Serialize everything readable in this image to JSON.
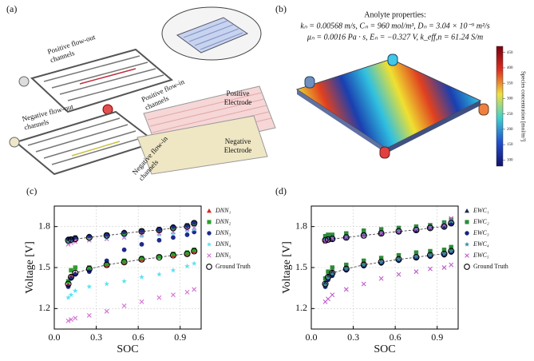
{
  "panel_a": {
    "label": "(a)",
    "texts": [
      {
        "lines": [
          "Positive flow-out",
          "channels"
        ]
      },
      {
        "lines": [
          "Negative flow-out",
          "channels"
        ]
      },
      {
        "lines": [
          "Positive flow-in",
          "channels"
        ]
      },
      {
        "lines": [
          "Positive",
          "Electrode"
        ]
      },
      {
        "lines": [
          "Negative",
          "Electrode"
        ]
      },
      {
        "lines": [
          "Negative flow-in",
          "channels"
        ]
      }
    ]
  },
  "panel_b": {
    "label": "(b)",
    "title": "Anolyte properties:",
    "lines": [
      "kₙ = 0.00568 m/s, Cₙ = 960 mol/m³, Dₙ = 3.04 × 10⁻⁹ m²/s",
      "μₙ = 0.0016 Pa · s, Eₙ = −0.327 V, k_eff,n = 61.24 S/m"
    ],
    "colorbar": {
      "label": "Species concentration [mol/m³]",
      "lim": [
        80,
        470
      ],
      "ticks": [
        100,
        150,
        200,
        250,
        300,
        350,
        400,
        450
      ]
    }
  },
  "chart_data": [
    {
      "type": "scatter",
      "label": "(c)",
      "xlabel": "SOC",
      "ylabel": "Voltage [V]",
      "xlim": [
        0,
        1.05
      ],
      "xticks": [
        {
          "value": 0,
          "label": "0.0"
        },
        0.3,
        0.6,
        0.9
      ],
      "ylim": [
        1.05,
        1.95
      ],
      "yticks": [
        1.2,
        1.5,
        1.8
      ],
      "grid": true,
      "legend": "right",
      "x": [
        0.1,
        0.12,
        0.15,
        0.25,
        0.375,
        0.5,
        0.625,
        0.75,
        0.85,
        0.95,
        1.0,
        0.1,
        0.12,
        0.15,
        0.25,
        0.375,
        0.5,
        0.625,
        0.75,
        0.85,
        0.95,
        1.0
      ],
      "series": [
        {
          "name": "DNN₁",
          "color": "#d62728",
          "marker": "triangle",
          "values": [
            1.7,
            1.7,
            1.71,
            1.72,
            1.73,
            1.75,
            1.76,
            1.77,
            1.79,
            1.8,
            1.82,
            1.38,
            1.44,
            1.46,
            1.49,
            1.52,
            1.54,
            1.56,
            1.58,
            1.59,
            1.6,
            1.62
          ]
        },
        {
          "name": "DNN₂",
          "color": "#2ca02c",
          "marker": "square",
          "values": [
            1.69,
            1.7,
            1.72,
            1.72,
            1.74,
            1.75,
            1.77,
            1.78,
            1.79,
            1.81,
            1.82,
            1.4,
            1.48,
            1.5,
            1.5,
            1.53,
            1.55,
            1.57,
            1.58,
            1.6,
            1.61,
            1.63
          ]
        },
        {
          "name": "DNN₃",
          "color": "#1f2a8a",
          "marker": "circle",
          "values": [
            1.71,
            1.71,
            1.72,
            1.73,
            1.74,
            1.76,
            1.77,
            1.78,
            1.8,
            1.8,
            1.83,
            1.36,
            1.42,
            1.45,
            1.47,
            1.55,
            1.63,
            1.67,
            1.7,
            1.72,
            1.74,
            1.76
          ]
        },
        {
          "name": "DNN₄",
          "color": "#5ee0f0",
          "marker": "star",
          "values": [
            1.68,
            1.69,
            1.69,
            1.7,
            1.71,
            1.72,
            1.73,
            1.74,
            1.75,
            1.77,
            1.78,
            1.28,
            1.3,
            1.33,
            1.36,
            1.38,
            1.4,
            1.43,
            1.45,
            1.48,
            1.51,
            1.53
          ]
        },
        {
          "name": "DNN₅",
          "color": "#d070d0",
          "marker": "x",
          "values": [
            1.67,
            1.68,
            1.69,
            1.7,
            1.71,
            1.72,
            1.74,
            1.75,
            1.76,
            1.78,
            1.79,
            1.11,
            1.12,
            1.13,
            1.15,
            1.18,
            1.22,
            1.25,
            1.28,
            1.3,
            1.32,
            1.34
          ]
        },
        {
          "name": "Ground Truth",
          "color": "#000000",
          "marker": "open-circle",
          "line": "dashed",
          "values": [
            1.7,
            1.705,
            1.71,
            1.72,
            1.735,
            1.75,
            1.765,
            1.775,
            1.79,
            1.8,
            1.825,
            1.38,
            1.43,
            1.46,
            1.49,
            1.52,
            1.54,
            1.56,
            1.575,
            1.59,
            1.6,
            1.62
          ]
        }
      ]
    },
    {
      "type": "scatter",
      "label": "(d)",
      "xlabel": "SOC",
      "ylabel": "Voltage [V]",
      "xlim": [
        0,
        1.05
      ],
      "xticks": [
        {
          "value": 0,
          "label": "0.0"
        },
        0.3,
        0.6,
        0.9
      ],
      "ylim": [
        1.05,
        1.95
      ],
      "yticks": [
        1.2,
        1.5,
        1.8
      ],
      "grid": true,
      "legend": "right",
      "x": [
        0.1,
        0.12,
        0.15,
        0.25,
        0.375,
        0.5,
        0.625,
        0.75,
        0.85,
        0.95,
        1.0,
        0.1,
        0.12,
        0.15,
        0.25,
        0.375,
        0.5,
        0.625,
        0.75,
        0.85,
        0.95,
        1.0
      ],
      "series": [
        {
          "name": "EWC₁",
          "color": "#1c2c4c",
          "marker": "triangle",
          "values": [
            1.72,
            1.72,
            1.73,
            1.73,
            1.75,
            1.76,
            1.77,
            1.78,
            1.79,
            1.81,
            1.83,
            1.39,
            1.44,
            1.47,
            1.5,
            1.53,
            1.55,
            1.57,
            1.58,
            1.6,
            1.61,
            1.63
          ]
        },
        {
          "name": "EWC₂",
          "color": "#2e8b3a",
          "marker": "square",
          "values": [
            1.73,
            1.74,
            1.74,
            1.75,
            1.77,
            1.78,
            1.79,
            1.8,
            1.81,
            1.83,
            1.85,
            1.42,
            1.47,
            1.5,
            1.52,
            1.55,
            1.57,
            1.59,
            1.61,
            1.62,
            1.63,
            1.65
          ]
        },
        {
          "name": "EWC₃",
          "color": "#1a237e",
          "marker": "circle",
          "values": [
            1.7,
            1.71,
            1.71,
            1.72,
            1.74,
            1.75,
            1.76,
            1.77,
            1.79,
            1.8,
            1.82,
            1.36,
            1.41,
            1.44,
            1.48,
            1.51,
            1.53,
            1.55,
            1.57,
            1.58,
            1.59,
            1.61
          ]
        },
        {
          "name": "EWC₄",
          "color": "#3a8fa0",
          "marker": "star",
          "values": [
            1.71,
            1.72,
            1.72,
            1.73,
            1.75,
            1.76,
            1.77,
            1.79,
            1.8,
            1.82,
            1.84,
            1.37,
            1.42,
            1.45,
            1.49,
            1.52,
            1.54,
            1.56,
            1.58,
            1.59,
            1.6,
            1.62
          ]
        },
        {
          "name": "EWC₅",
          "color": "#c05cc8",
          "marker": "x",
          "values": [
            1.69,
            1.7,
            1.71,
            1.72,
            1.73,
            1.75,
            1.76,
            1.78,
            1.79,
            1.81,
            1.86,
            1.25,
            1.27,
            1.3,
            1.34,
            1.38,
            1.42,
            1.45,
            1.47,
            1.49,
            1.5,
            1.52
          ]
        },
        {
          "name": "Ground Truth",
          "color": "#000000",
          "marker": "open-circle",
          "line": "dashed",
          "values": [
            1.7,
            1.705,
            1.71,
            1.72,
            1.735,
            1.75,
            1.765,
            1.775,
            1.79,
            1.8,
            1.825,
            1.38,
            1.43,
            1.46,
            1.49,
            1.52,
            1.54,
            1.56,
            1.575,
            1.59,
            1.6,
            1.62
          ]
        }
      ]
    }
  ]
}
